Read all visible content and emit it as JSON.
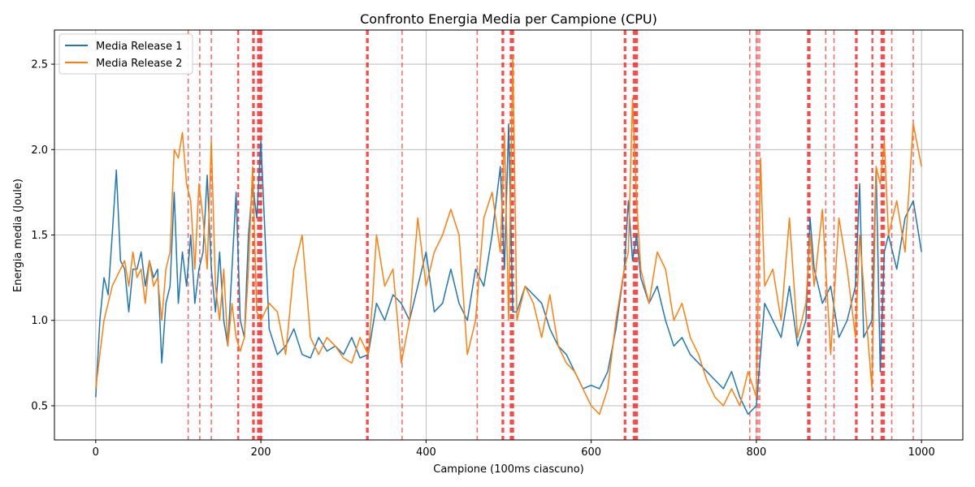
{
  "chart_data": {
    "type": "line",
    "title": "Confronto Energia Media per Campione (CPU)",
    "xlabel": "Campione (100ms ciascuno)",
    "ylabel": "Energia media (Joule)",
    "xlim": [
      -50,
      1050
    ],
    "ylim": [
      0.3,
      2.7
    ],
    "xticks": [
      0,
      200,
      400,
      600,
      800,
      1000
    ],
    "yticks": [
      0.5,
      1.0,
      1.5,
      2.0,
      2.5
    ],
    "xtick_labels": [
      "0",
      "200",
      "400",
      "600",
      "800",
      "1000"
    ],
    "ytick_labels": [
      "0.5",
      "1.0",
      "1.5",
      "2.0",
      "2.5"
    ],
    "grid": true,
    "legend_position": "top-left",
    "series": [
      {
        "name": "Media Release 1",
        "color": "#1f77b4",
        "x": [
          0,
          5,
          10,
          15,
          20,
          25,
          30,
          35,
          40,
          45,
          50,
          55,
          60,
          65,
          70,
          75,
          80,
          85,
          90,
          95,
          100,
          105,
          110,
          115,
          120,
          125,
          130,
          135,
          140,
          145,
          150,
          155,
          160,
          165,
          170,
          175,
          180,
          185,
          190,
          195,
          200,
          210,
          220,
          230,
          240,
          250,
          260,
          270,
          280,
          290,
          300,
          310,
          320,
          330,
          340,
          350,
          360,
          370,
          380,
          390,
          400,
          410,
          420,
          430,
          440,
          450,
          460,
          470,
          480,
          490,
          495,
          500,
          505,
          510,
          520,
          530,
          540,
          550,
          560,
          570,
          580,
          590,
          600,
          610,
          620,
          630,
          640,
          645,
          650,
          655,
          660,
          670,
          680,
          690,
          700,
          710,
          720,
          730,
          740,
          750,
          760,
          770,
          780,
          790,
          800,
          810,
          820,
          830,
          840,
          850,
          860,
          865,
          870,
          880,
          890,
          900,
          910,
          920,
          925,
          930,
          940,
          945,
          950,
          955,
          960,
          970,
          980,
          990,
          1000
        ],
        "values": [
          0.55,
          1.0,
          1.25,
          1.15,
          1.5,
          1.88,
          1.35,
          1.3,
          1.05,
          1.3,
          1.3,
          1.4,
          1.2,
          1.35,
          1.25,
          1.3,
          0.75,
          1.1,
          1.2,
          1.75,
          1.1,
          1.4,
          1.2,
          1.5,
          1.1,
          1.3,
          1.4,
          1.85,
          1.3,
          1.05,
          1.4,
          1.0,
          0.85,
          1.3,
          1.75,
          1.0,
          0.9,
          1.5,
          1.8,
          1.6,
          2.05,
          0.95,
          0.8,
          0.85,
          0.95,
          0.8,
          0.78,
          0.9,
          0.82,
          0.85,
          0.8,
          0.9,
          0.78,
          0.8,
          1.1,
          1.0,
          1.15,
          1.1,
          1.0,
          1.2,
          1.4,
          1.05,
          1.1,
          1.3,
          1.1,
          1.0,
          1.3,
          1.2,
          1.5,
          1.9,
          1.3,
          2.15,
          1.05,
          1.05,
          1.2,
          1.15,
          1.1,
          0.95,
          0.85,
          0.8,
          0.7,
          0.6,
          0.62,
          0.6,
          0.7,
          0.95,
          1.3,
          1.7,
          1.35,
          1.5,
          1.25,
          1.1,
          1.2,
          1.0,
          0.85,
          0.9,
          0.8,
          0.75,
          0.7,
          0.65,
          0.6,
          0.7,
          0.55,
          0.45,
          0.5,
          1.1,
          1.0,
          0.9,
          1.2,
          0.85,
          1.0,
          1.6,
          1.3,
          1.1,
          1.2,
          0.9,
          1.0,
          1.2,
          1.8,
          0.9,
          1.0,
          1.9,
          0.7,
          1.4,
          1.5,
          1.3,
          1.6,
          1.7,
          1.4
        ]
      },
      {
        "name": "Media Release 2",
        "color": "#ff7f0e",
        "x": [
          0,
          5,
          10,
          15,
          20,
          25,
          30,
          35,
          40,
          45,
          50,
          55,
          60,
          65,
          70,
          75,
          80,
          85,
          90,
          95,
          100,
          105,
          110,
          115,
          120,
          125,
          130,
          135,
          140,
          145,
          150,
          155,
          160,
          165,
          170,
          175,
          180,
          185,
          190,
          195,
          200,
          210,
          220,
          230,
          240,
          250,
          260,
          270,
          280,
          290,
          300,
          310,
          320,
          330,
          335,
          340,
          350,
          360,
          370,
          380,
          390,
          400,
          410,
          420,
          430,
          440,
          450,
          460,
          470,
          480,
          490,
          495,
          500,
          505,
          510,
          520,
          530,
          540,
          550,
          560,
          570,
          580,
          590,
          600,
          610,
          620,
          630,
          640,
          645,
          650,
          655,
          660,
          670,
          680,
          690,
          700,
          710,
          720,
          730,
          740,
          750,
          760,
          770,
          780,
          790,
          800,
          805,
          810,
          820,
          830,
          840,
          850,
          860,
          865,
          870,
          880,
          890,
          900,
          910,
          920,
          925,
          930,
          940,
          945,
          950,
          955,
          960,
          970,
          980,
          990,
          1000
        ],
        "values": [
          0.6,
          0.8,
          1.0,
          1.1,
          1.2,
          1.25,
          1.3,
          1.35,
          1.2,
          1.4,
          1.25,
          1.3,
          1.1,
          1.35,
          1.2,
          1.25,
          1.0,
          1.3,
          1.4,
          2.0,
          1.95,
          2.1,
          1.8,
          1.7,
          1.3,
          1.8,
          1.6,
          1.3,
          2.05,
          1.2,
          1.0,
          1.3,
          0.85,
          1.1,
          0.9,
          0.82,
          0.9,
          1.3,
          1.9,
          1.05,
          1.0,
          1.1,
          1.05,
          0.8,
          1.3,
          1.5,
          0.9,
          0.8,
          0.9,
          0.85,
          0.78,
          0.75,
          0.9,
          0.8,
          1.1,
          1.5,
          1.2,
          1.3,
          0.75,
          1.0,
          1.6,
          1.2,
          1.4,
          1.5,
          1.65,
          1.5,
          0.8,
          1.0,
          1.6,
          1.75,
          1.4,
          2.1,
          1.0,
          2.55,
          1.0,
          1.2,
          1.1,
          0.9,
          1.15,
          0.85,
          0.75,
          0.7,
          0.6,
          0.5,
          0.45,
          0.6,
          1.0,
          1.3,
          1.4,
          2.3,
          1.7,
          1.3,
          1.1,
          1.4,
          1.3,
          1.0,
          1.1,
          0.9,
          0.8,
          0.65,
          0.55,
          0.5,
          0.6,
          0.5,
          0.7,
          0.55,
          1.95,
          1.2,
          1.3,
          1.0,
          1.6,
          0.9,
          1.1,
          1.5,
          1.2,
          1.65,
          0.8,
          1.6,
          1.3,
          0.9,
          1.5,
          1.2,
          0.6,
          1.9,
          1.8,
          2.05,
          1.5,
          1.7,
          1.4,
          2.15,
          1.9
        ]
      }
    ],
    "vertical_markers": {
      "color": "#ff0000",
      "style": "dashed",
      "x": [
        112,
        126,
        140,
        172,
        173,
        190,
        191,
        192,
        196,
        197,
        198,
        199,
        200,
        201,
        328,
        329,
        330,
        371,
        462,
        492,
        493,
        494,
        502,
        503,
        504,
        505,
        506,
        640,
        641,
        642,
        651,
        652,
        653,
        654,
        655,
        656,
        792,
        800,
        802,
        804,
        862,
        863,
        864,
        865,
        884,
        894,
        920,
        921,
        922,
        940,
        941,
        951,
        952,
        953,
        954,
        955,
        964,
        990
      ]
    }
  }
}
